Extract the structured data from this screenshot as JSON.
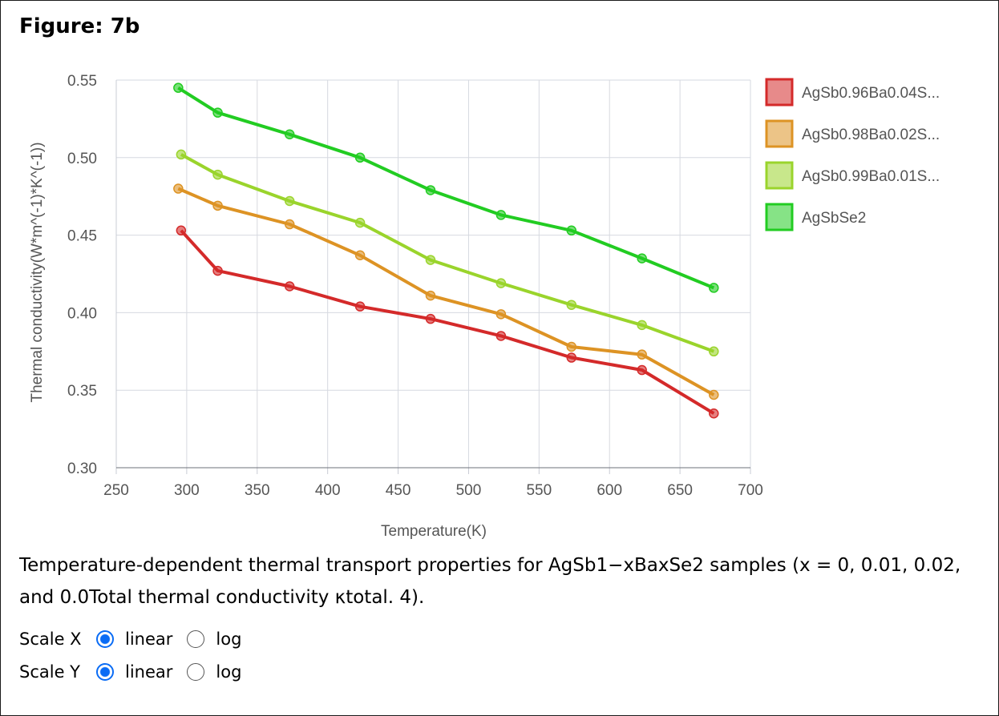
{
  "figure_title": "Figure: 7b",
  "caption": "Temperature-dependent thermal transport properties for AgSb1−xBaxSe2 samples (x = 0, 0.01, 0.02, and 0.0Total thermal conductivity κtotal. 4).",
  "controls": {
    "scale_x": {
      "label": "Scale X",
      "options": [
        "linear",
        "log"
      ],
      "selected": "linear"
    },
    "scale_y": {
      "label": "Scale Y",
      "options": [
        "linear",
        "log"
      ],
      "selected": "linear"
    }
  },
  "chart_data": {
    "type": "line",
    "title": "",
    "xlabel": "Temperature(K)",
    "ylabel": "Thermal conductivity(W*m^(-1)*K^(-1))",
    "xlim": [
      250,
      700
    ],
    "ylim": [
      0.3,
      0.55
    ],
    "xticks": [
      "250",
      "300",
      "350",
      "400",
      "450",
      "500",
      "550",
      "600",
      "650",
      "700"
    ],
    "yticks": [
      "0.30",
      "0.35",
      "0.40",
      "0.45",
      "0.50",
      "0.55"
    ],
    "grid": true,
    "legend_position": "right",
    "series": [
      {
        "name": "AgSb0.96Ba0.04S...",
        "color": "#d42a2a",
        "x": [
          296,
          322,
          373,
          423,
          473,
          523,
          573,
          623,
          674
        ],
        "y": [
          0.453,
          0.427,
          0.417,
          0.404,
          0.396,
          0.385,
          0.371,
          0.363,
          0.335
        ]
      },
      {
        "name": "AgSb0.98Ba0.02S...",
        "color": "#dd9324",
        "x": [
          294,
          322,
          373,
          423,
          473,
          523,
          573,
          623,
          674
        ],
        "y": [
          0.48,
          0.469,
          0.457,
          0.437,
          0.411,
          0.399,
          0.378,
          0.373,
          0.347
        ]
      },
      {
        "name": "AgSb0.99Ba0.01S...",
        "color": "#9ad42c",
        "x": [
          296,
          322,
          373,
          423,
          473,
          523,
          573,
          623,
          674
        ],
        "y": [
          0.502,
          0.489,
          0.472,
          0.458,
          0.434,
          0.419,
          0.405,
          0.392,
          0.375
        ]
      },
      {
        "name": "AgSbSe2",
        "color": "#22cc22",
        "x": [
          294,
          322,
          373,
          423,
          473,
          523,
          573,
          623,
          674
        ],
        "y": [
          0.545,
          0.529,
          0.515,
          0.5,
          0.479,
          0.463,
          0.453,
          0.435,
          0.416
        ]
      }
    ]
  }
}
